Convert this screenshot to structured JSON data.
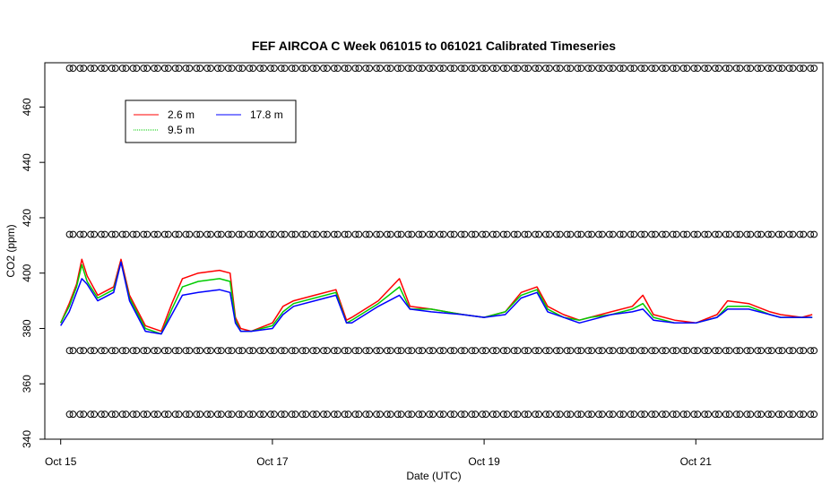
{
  "chart_data": {
    "type": "line",
    "title": "FEF AIRCOA C  Week 061015 to 061021  Calibrated Timeseries",
    "xlabel": "Date (UTC)",
    "ylabel": "CO2 (ppm)",
    "xlim": [
      14.85,
      22.2
    ],
    "ylim": [
      340,
      476
    ],
    "x_ticks": [
      {
        "value": 15,
        "label": "Oct 15"
      },
      {
        "value": 17,
        "label": "Oct 17"
      },
      {
        "value": 19,
        "label": "Oct 19"
      },
      {
        "value": 21,
        "label": "Oct 21"
      }
    ],
    "y_ticks": [
      340,
      360,
      380,
      400,
      420,
      440,
      460
    ],
    "legend_position": "top-left",
    "series": [
      {
        "name": "2.6 m",
        "color": "#ff0000",
        "x": [
          15.0,
          15.08,
          15.15,
          15.2,
          15.25,
          15.35,
          15.5,
          15.57,
          15.65,
          15.8,
          15.95,
          16.05,
          16.15,
          16.3,
          16.5,
          16.6,
          16.65,
          16.7,
          16.8,
          17.0,
          17.1,
          17.2,
          17.4,
          17.6,
          17.7,
          17.75,
          18.0,
          18.2,
          18.3,
          18.5,
          18.8,
          19.0,
          19.2,
          19.35,
          19.5,
          19.6,
          19.75,
          19.9,
          20.0,
          20.2,
          20.4,
          20.5,
          20.6,
          20.8,
          21.0,
          21.2,
          21.3,
          21.5,
          21.7,
          21.8,
          22.0,
          22.1
        ],
        "y": [
          382,
          389,
          396,
          405,
          399,
          392,
          395,
          405,
          392,
          381,
          379,
          389,
          398,
          400,
          401,
          400,
          384,
          380,
          379,
          382,
          388,
          390,
          392,
          394,
          383,
          384,
          390,
          398,
          388,
          387,
          385,
          384,
          386,
          393,
          395,
          388,
          385,
          383,
          384,
          386,
          388,
          392,
          385,
          383,
          382,
          385,
          390,
          389,
          386,
          385,
          384,
          385
        ]
      },
      {
        "name": "9.5 m",
        "color": "#00cc00",
        "x": [
          15.0,
          15.08,
          15.15,
          15.2,
          15.25,
          15.35,
          15.5,
          15.57,
          15.65,
          15.8,
          15.95,
          16.05,
          16.15,
          16.3,
          16.5,
          16.6,
          16.65,
          16.7,
          16.8,
          17.0,
          17.1,
          17.2,
          17.4,
          17.6,
          17.7,
          17.75,
          18.0,
          18.2,
          18.3,
          18.5,
          18.8,
          19.0,
          19.2,
          19.35,
          19.5,
          19.6,
          19.75,
          19.9,
          20.0,
          20.2,
          20.4,
          20.5,
          20.6,
          20.8,
          21.0,
          21.2,
          21.3,
          21.5,
          21.7,
          21.8,
          22.0,
          22.1
        ],
        "y": [
          382,
          388,
          395,
          403,
          397,
          391,
          394,
          404,
          391,
          380,
          378,
          387,
          395,
          397,
          398,
          397,
          383,
          379,
          379,
          381,
          386,
          389,
          391,
          393,
          382,
          383,
          389,
          395,
          387,
          387,
          385,
          384,
          386,
          392,
          394,
          387,
          384,
          383,
          384,
          385,
          387,
          389,
          384,
          382,
          382,
          384,
          388,
          388,
          385,
          384,
          384,
          384
        ]
      },
      {
        "name": "17.8 m",
        "color": "#0000ff",
        "x": [
          15.0,
          15.08,
          15.15,
          15.2,
          15.25,
          15.35,
          15.5,
          15.57,
          15.65,
          15.8,
          15.95,
          16.05,
          16.15,
          16.3,
          16.5,
          16.6,
          16.65,
          16.7,
          16.8,
          17.0,
          17.1,
          17.2,
          17.4,
          17.6,
          17.7,
          17.75,
          18.0,
          18.2,
          18.3,
          18.5,
          18.8,
          19.0,
          19.2,
          19.35,
          19.5,
          19.6,
          19.75,
          19.9,
          20.0,
          20.2,
          20.4,
          20.5,
          20.6,
          20.8,
          21.0,
          21.2,
          21.3,
          21.5,
          21.7,
          21.8,
          22.0,
          22.1
        ],
        "y": [
          381,
          386,
          393,
          398,
          396,
          390,
          393,
          404,
          390,
          379,
          378,
          385,
          392,
          393,
          394,
          393,
          382,
          379,
          379,
          380,
          385,
          388,
          390,
          392,
          382,
          382,
          388,
          392,
          387,
          386,
          385,
          384,
          385,
          391,
          393,
          386,
          384,
          382,
          383,
          385,
          386,
          387,
          383,
          382,
          382,
          384,
          387,
          387,
          385,
          384,
          384,
          384
        ]
      },
      {
        "name": "",
        "color": "#000000",
        "marker": "circle",
        "x_start": 15.1,
        "x_end": 22.1,
        "x_step": 0.1,
        "levels": [
          474,
          414,
          372,
          349
        ]
      }
    ]
  }
}
